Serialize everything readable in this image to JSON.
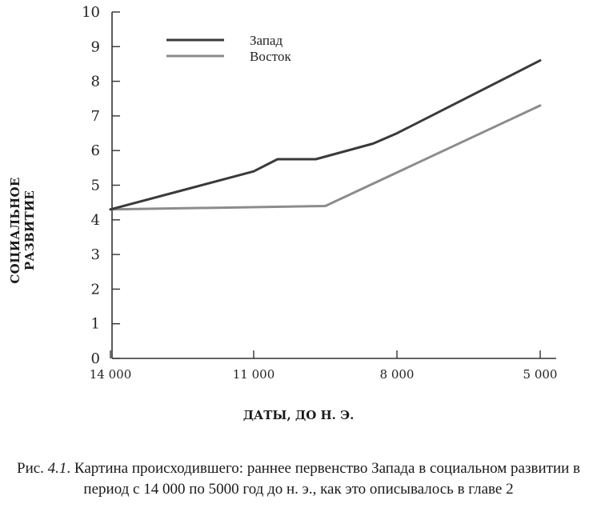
{
  "chart_data": {
    "type": "line",
    "ylabel": "СОЦИАЛЬНОЕ РАЗВИТИЕ",
    "xlabel": "ДАТЫ, ДО Н. Э.",
    "ylim": [
      0,
      10
    ],
    "y_ticks": [
      "0",
      "1",
      "2",
      "3",
      "4",
      "5",
      "6",
      "7",
      "8",
      "9",
      "10"
    ],
    "xlim": [
      14000,
      5000
    ],
    "x_ticks": [
      {
        "value": 14000,
        "label": "14 000"
      },
      {
        "value": 11000,
        "label": "11 000"
      },
      {
        "value": 8000,
        "label": "8 000"
      },
      {
        "value": 5000,
        "label": "5 000"
      }
    ],
    "legend_position": "top-left",
    "series": [
      {
        "name": "Запад",
        "color": "#3a3a3a",
        "x": [
          14000,
          12500,
          11000,
          10500,
          9700,
          8500,
          8000,
          5000
        ],
        "y": [
          4.3,
          4.85,
          5.4,
          5.75,
          5.75,
          6.2,
          6.5,
          8.6
        ]
      },
      {
        "name": "Восток",
        "color": "#8c8c8c",
        "x": [
          14000,
          9500,
          5000
        ],
        "y": [
          4.3,
          4.4,
          7.3
        ]
      }
    ]
  },
  "caption": {
    "prefix": "Рис. ",
    "number": "4.1",
    "text": ". Картина происходившего: раннее первенство Запада в социальном развитии в период с 14 000 по 5000 год до н. э., как это описывалось в главе 2"
  }
}
